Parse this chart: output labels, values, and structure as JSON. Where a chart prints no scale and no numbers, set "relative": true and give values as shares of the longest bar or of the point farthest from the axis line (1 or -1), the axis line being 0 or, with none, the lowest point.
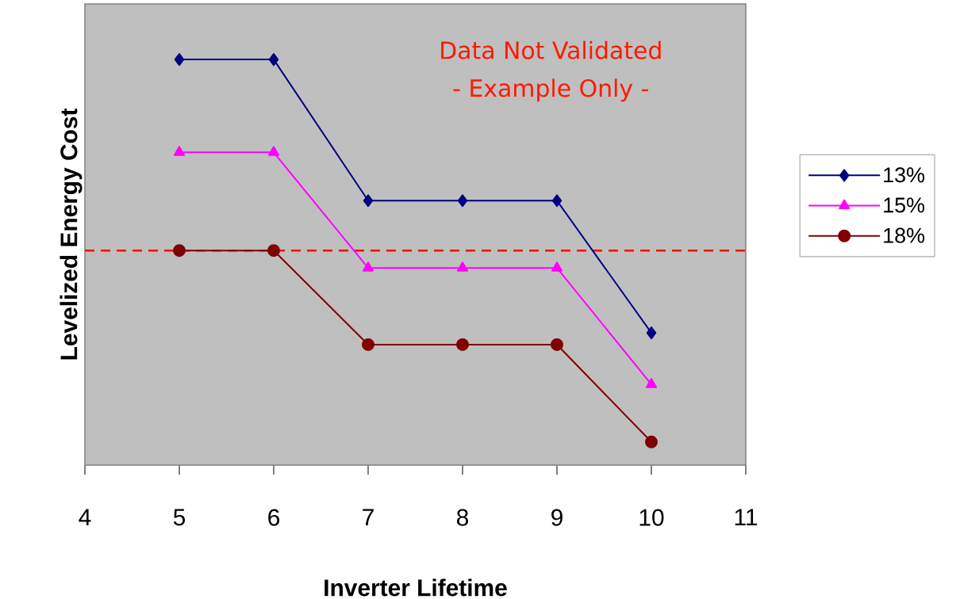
{
  "chart_data": {
    "type": "line",
    "relative": true,
    "xlabel": "Inverter Lifetime",
    "ylabel": "Levelized Energy Cost",
    "x": [
      5,
      6,
      7,
      8,
      9,
      10
    ],
    "xlim": [
      4,
      11
    ],
    "xticks": [
      4,
      5,
      6,
      7,
      8,
      9,
      10,
      11
    ],
    "series": [
      {
        "name": "13%",
        "color": "#000080",
        "marker": "diamond",
        "values": [
          1,
          1,
          0.652,
          0.652,
          0.652,
          0.326
        ]
      },
      {
        "name": "15%",
        "color": "#ff00ff",
        "marker": "triangle",
        "values": [
          0.771,
          0.771,
          0.486,
          0.486,
          0.486,
          0.199
        ]
      },
      {
        "name": "18%",
        "color": "#800000",
        "marker": "circle",
        "values": [
          0.529,
          0.529,
          0.297,
          0.297,
          0.297,
          0.057
        ]
      }
    ],
    "ref_lines": [
      {
        "axis": "y",
        "value": 0.529,
        "color": "#ff0000",
        "line_style": "dashed"
      }
    ],
    "annotations": [
      "Data Not Validated",
      "- Example Only -"
    ],
    "legend": "right"
  }
}
